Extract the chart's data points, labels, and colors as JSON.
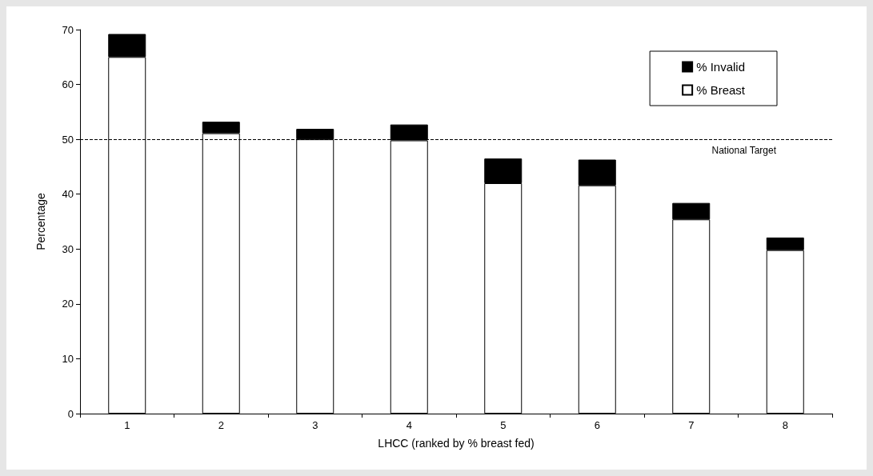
{
  "chart_data": {
    "type": "bar",
    "xlabel": "LHCC (ranked by % breast fed)",
    "ylabel": "Percentage",
    "categories": [
      "1",
      "2",
      "3",
      "4",
      "5",
      "6",
      "7",
      "8"
    ],
    "stacked": true,
    "series": [
      {
        "name": "% Breast",
        "color": "#ffffff",
        "values": [
          65.0,
          51.1,
          50.0,
          49.8,
          42.0,
          41.6,
          35.4,
          29.8
        ]
      },
      {
        "name": "% Invalid",
        "color": "#000000",
        "values": [
          4.2,
          2.1,
          1.9,
          2.9,
          4.5,
          4.7,
          3.0,
          2.3
        ]
      }
    ],
    "ylim": [
      0,
      70
    ],
    "yticks": [
      0,
      10,
      20,
      30,
      40,
      50,
      60,
      70
    ],
    "ref_lines": [
      {
        "axis": "y",
        "value": 50,
        "label": "National Target",
        "color": "#000000",
        "line_style": "dashed"
      }
    ],
    "legend": "top right"
  }
}
